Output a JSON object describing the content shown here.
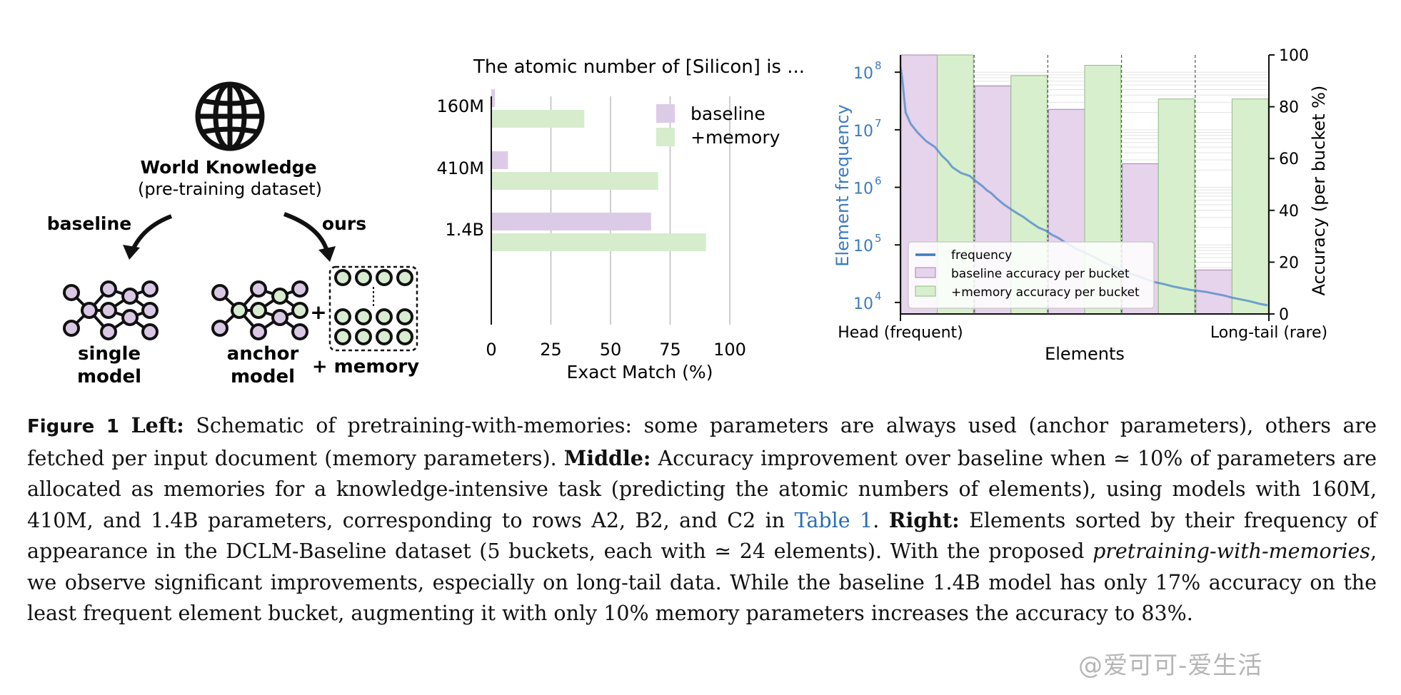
{
  "left_panel": {
    "title": "World Knowledge",
    "subtitle": "(pre-training dataset)",
    "baseline_label": "baseline",
    "ours_label": "ours",
    "single_model_line1": "single",
    "single_model_line2": "model",
    "anchor_model_line1": "anchor",
    "anchor_model_line2": "model",
    "plus": "+",
    "memory_label": "+ memory",
    "colors": {
      "baseline_node": "#d9c8e3",
      "anchor_node": "#d7ecd0",
      "stroke": "#111111"
    }
  },
  "chart_data": [
    {
      "type": "bar",
      "orientation": "horizontal",
      "title": "The atomic number of [Silicon] is ...",
      "xlabel": "Exact Match (%)",
      "ylabel": "",
      "categories": [
        "160M",
        "410M",
        "1.4B"
      ],
      "series": [
        {
          "name": "baseline",
          "values": [
            1.5,
            7,
            67
          ],
          "color": "#dccbe6"
        },
        {
          "name": "+memory",
          "values": [
            39,
            70,
            90
          ],
          "color": "#d6eccd"
        }
      ],
      "xlim": [
        0,
        100
      ],
      "xticks": [
        "0",
        "25",
        "50",
        "75",
        "100"
      ],
      "grid": "vertical",
      "legend": "top-right"
    },
    {
      "type": "bar+line",
      "xlabel": "Elements",
      "x_tick_left": "Head (frequent)",
      "x_tick_right": "Long-tail (rare)",
      "ylabel_left": "Element frequency",
      "ylabel_right": "Accuracy (per bucket %)",
      "y_left_scale": "log",
      "y_left_ticks": [
        "10",
        "10",
        "10",
        "10",
        "10"
      ],
      "y_left_exponents": [
        "4",
        "5",
        "6",
        "7",
        "8"
      ],
      "y_right_ticks": [
        "0",
        "20",
        "40",
        "60",
        "80",
        "100"
      ],
      "ylim_right": [
        0,
        100
      ],
      "buckets": 5,
      "series": [
        {
          "name": "frequency",
          "color": "#3c7bbf"
        },
        {
          "name": "baseline accuracy per bucket",
          "values": [
            100,
            88,
            79,
            58,
            17
          ],
          "color": "#e6d3ec"
        },
        {
          "name": "+memory accuracy per bucket",
          "values": [
            100,
            92,
            96,
            83,
            83
          ],
          "color": "#d8efce"
        }
      ],
      "legend": "bottom-left"
    }
  ],
  "caption": {
    "fig_label": "Figure 1",
    "left_label": "Left:",
    "left_text": " Schematic of pretraining-with-memories: some parameters are always used (anchor parameters), others are fetched per input document (memory parameters). ",
    "middle_label": "Middle:",
    "middle_text": " Accuracy improvement over baseline when ≃ 10% of parameters are allocated as memories for a knowledge-intensive task (predicting the atomic numbers of elements), using models with 160M, 410M, and 1.4B parameters, corresponding to rows A2, B2, and C2 in ",
    "table_link": "Table 1",
    "after_link": ". ",
    "right_label": "Right:",
    "right_text_1": " Elements sorted by their frequency of appearance in the DCLM-Baseline dataset (5 buckets, each with ≃ 24 elements). With the proposed ",
    "right_italic": "pretraining-with-memories",
    "right_text_2": ", we observe significant improvements, especially on long-tail data. While the baseline 1.4B model has only 17% accuracy on the least frequent element bucket, augmenting it with only 10% memory parameters increases the accuracy to 83%."
  },
  "watermark": "@爱可可-爱生活"
}
